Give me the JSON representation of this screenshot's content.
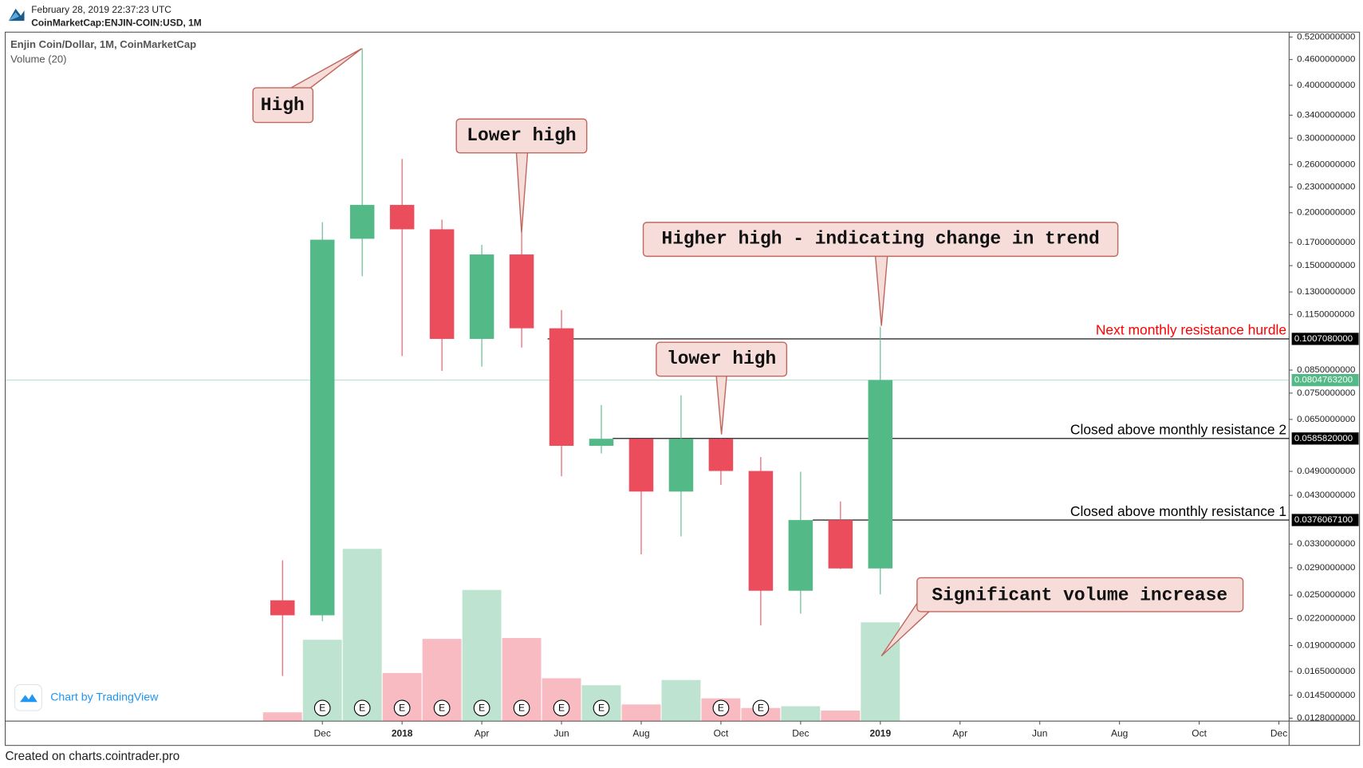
{
  "header": {
    "timestamp": "February 28, 2019 22:37:23 UTC",
    "symbol": "CoinMarketCap:ENJIN-COIN:USD, 1M"
  },
  "chart_data": {
    "type": "candlestick",
    "title": "Enjin Coin/Dollar, 1M, CoinMarketCap",
    "volume_label": "Volume (20)",
    "categories": [
      null,
      "Dec",
      null,
      "2018",
      null,
      "Apr",
      null,
      "Jun",
      null,
      "Aug",
      null,
      "Oct",
      null,
      "Dec",
      null,
      "2019",
      null,
      "Apr",
      null,
      "Jun",
      null,
      "Aug",
      null,
      "Oct",
      null,
      "Dec"
    ],
    "open": [
      0.0243,
      0.0224,
      0.1736,
      0.2087,
      0.1828,
      0.1007,
      0.1594,
      0.1067,
      0.0563,
      0.0585,
      0.0439,
      0.0585,
      0.0491,
      0.0256,
      0.0376,
      0.0289,
      null,
      null,
      null,
      null,
      null,
      null,
      null,
      null,
      null,
      null
    ],
    "high": [
      0.0302,
      0.19,
      0.489,
      0.268,
      0.1927,
      0.168,
      0.1794,
      0.1178,
      0.0703,
      0.0585,
      0.0741,
      0.0586,
      0.053,
      0.0489,
      0.0416,
      0.1077,
      null,
      null,
      null,
      null,
      null,
      null,
      null,
      null,
      null,
      null
    ],
    "low": [
      0.0161,
      0.0217,
      0.1416,
      0.0917,
      0.0846,
      0.0866,
      0.0961,
      0.0477,
      0.054,
      0.0312,
      0.0344,
      0.0455,
      0.0212,
      0.0226,
      0.0288,
      0.0251,
      null,
      null,
      null,
      null,
      null,
      null,
      null,
      null,
      null,
      null
    ],
    "close": [
      0.0224,
      0.1727,
      0.2087,
      0.1828,
      0.1007,
      0.1594,
      0.1067,
      0.0563,
      0.0585,
      0.0439,
      0.0585,
      0.0491,
      0.0256,
      0.0376,
      0.0289,
      0.0805,
      null,
      null,
      null,
      null,
      null,
      null,
      null,
      null,
      null,
      null
    ],
    "volume": [
      10,
      93,
      197,
      55,
      94,
      150,
      95,
      49,
      41,
      19,
      47,
      26,
      15,
      17,
      12,
      113,
      null,
      null,
      null,
      null,
      null,
      null,
      null,
      null,
      null,
      null
    ],
    "up_color": "#53b987",
    "down_color": "#eb4d5c",
    "events": [
      null,
      "E",
      "E",
      "E",
      "E",
      "E",
      "E",
      "E",
      "E",
      null,
      null,
      "E",
      "E",
      null,
      null,
      null,
      null,
      null,
      null,
      null,
      null,
      null,
      null,
      null,
      null,
      null
    ],
    "log_scale": true,
    "ylim": [
      0.0126,
      0.534
    ],
    "yticks": [
      {
        "value": 0.52,
        "label": "0.5200000000"
      },
      {
        "value": 0.46,
        "label": "0.4600000000"
      },
      {
        "value": 0.4,
        "label": "0.4000000000"
      },
      {
        "value": 0.34,
        "label": "0.3400000000"
      },
      {
        "value": 0.3,
        "label": "0.3000000000"
      },
      {
        "value": 0.26,
        "label": "0.2600000000"
      },
      {
        "value": 0.23,
        "label": "0.2300000000"
      },
      {
        "value": 0.2,
        "label": "0.2000000000"
      },
      {
        "value": 0.17,
        "label": "0.1700000000"
      },
      {
        "value": 0.15,
        "label": "0.1500000000"
      },
      {
        "value": 0.13,
        "label": "0.1300000000"
      },
      {
        "value": 0.115,
        "label": "0.1150000000"
      },
      {
        "value": 0.085,
        "label": "0.0850000000"
      },
      {
        "value": 0.075,
        "label": "0.0750000000"
      },
      {
        "value": 0.065,
        "label": "0.0650000000"
      },
      {
        "value": 0.049,
        "label": "0.0490000000"
      },
      {
        "value": 0.043,
        "label": "0.0430000000"
      },
      {
        "value": 0.033,
        "label": "0.0330000000"
      },
      {
        "value": 0.029,
        "label": "0.0290000000"
      },
      {
        "value": 0.025,
        "label": "0.0250000000"
      },
      {
        "value": 0.022,
        "label": "0.0220000000"
      },
      {
        "value": 0.019,
        "label": "0.0190000000"
      },
      {
        "value": 0.0165,
        "label": "0.0165000000"
      },
      {
        "value": 0.0145,
        "label": "0.0145000000"
      },
      {
        "value": 0.0128,
        "label": "0.0128000000"
      }
    ],
    "price_lines": [
      {
        "value": 0.100708,
        "label": "0.1007080000",
        "text": "Next monthly resistance hurdle",
        "color": "#ff0000"
      },
      {
        "value": 0.058582,
        "label": "0.0585820000",
        "text": "Closed above monthly resistance 2",
        "color": "#000000"
      },
      {
        "value": 0.0376067,
        "label": "0.0376067100",
        "text": "Closed above monthly resistance 1",
        "color": "#000000"
      },
      {
        "value": 0.08047632,
        "label": "0.0804763200",
        "color": "#53b987"
      }
    ],
    "annotations": [
      "High",
      "Lower high",
      "Higher high - indicating change in trend",
      "lower high",
      "Significant volume increase"
    ],
    "credit": "Chart by TradingView"
  },
  "footer": "Created on charts.cointrader.pro"
}
